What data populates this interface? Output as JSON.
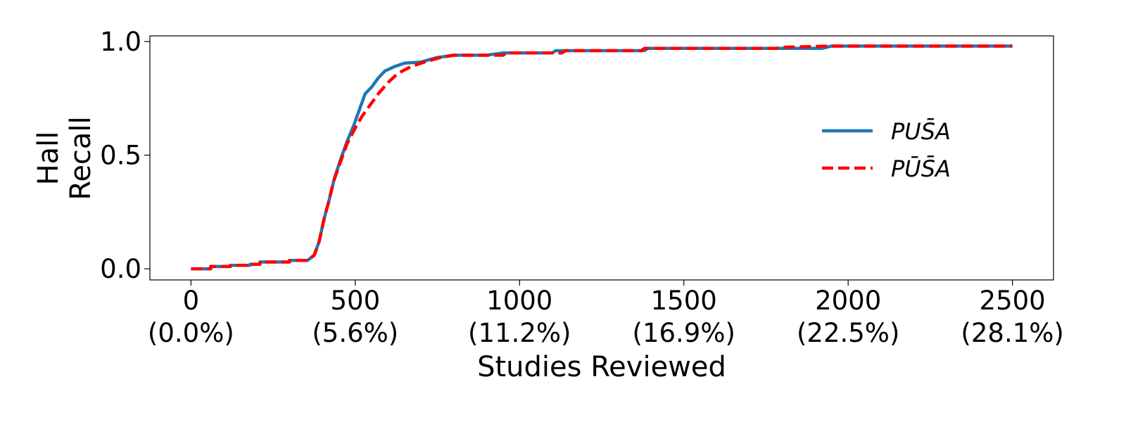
{
  "chart_data": {
    "type": "line",
    "xlabel": "Studies Reviewed",
    "ylabel_lines": [
      "Hall",
      "Recall"
    ],
    "xlim": [
      -125,
      2625
    ],
    "ylim": [
      -0.049,
      1.025
    ],
    "x_ticks": [
      {
        "value": 0,
        "label": "0",
        "sublabel": "(0.0%)"
      },
      {
        "value": 500,
        "label": "500",
        "sublabel": "(5.6%)"
      },
      {
        "value": 1000,
        "label": "1000",
        "sublabel": "(11.2%)"
      },
      {
        "value": 1500,
        "label": "1500",
        "sublabel": "(16.9%)"
      },
      {
        "value": 2000,
        "label": "2000",
        "sublabel": "(22.5%)"
      },
      {
        "value": 2500,
        "label": "2500",
        "sublabel": "(28.1%)"
      }
    ],
    "y_ticks": [
      {
        "value": 0.0,
        "label": "0.0"
      },
      {
        "value": 0.5,
        "label": "0.5"
      },
      {
        "value": 1.0,
        "label": "1.0"
      }
    ],
    "grid": false,
    "legend_position": "right",
    "series": [
      {
        "name": "PUS̄A",
        "color": "#1f77b4",
        "style": "solid",
        "points": [
          [
            0,
            0.0
          ],
          [
            60,
            0.0
          ],
          [
            60,
            0.01
          ],
          [
            120,
            0.01
          ],
          [
            120,
            0.015
          ],
          [
            180,
            0.015
          ],
          [
            180,
            0.02
          ],
          [
            210,
            0.02
          ],
          [
            210,
            0.03
          ],
          [
            300,
            0.03
          ],
          [
            300,
            0.037
          ],
          [
            355,
            0.037
          ],
          [
            375,
            0.06
          ],
          [
            390,
            0.12
          ],
          [
            405,
            0.22
          ],
          [
            420,
            0.3
          ],
          [
            435,
            0.39
          ],
          [
            455,
            0.48
          ],
          [
            475,
            0.56
          ],
          [
            495,
            0.63
          ],
          [
            515,
            0.71
          ],
          [
            530,
            0.77
          ],
          [
            550,
            0.8
          ],
          [
            570,
            0.84
          ],
          [
            590,
            0.87
          ],
          [
            620,
            0.89
          ],
          [
            650,
            0.905
          ],
          [
            700,
            0.91
          ],
          [
            750,
            0.93
          ],
          [
            800,
            0.94
          ],
          [
            900,
            0.94
          ],
          [
            950,
            0.95
          ],
          [
            1100,
            0.95
          ],
          [
            1110,
            0.96
          ],
          [
            1380,
            0.96
          ],
          [
            1390,
            0.97
          ],
          [
            1920,
            0.97
          ],
          [
            1950,
            0.98
          ],
          [
            2500,
            0.98
          ]
        ]
      },
      {
        "name": "PŪS̄A",
        "color": "#ff0000",
        "style": "dashed",
        "points": [
          [
            0,
            0.0
          ],
          [
            60,
            0.0
          ],
          [
            60,
            0.01
          ],
          [
            120,
            0.01
          ],
          [
            120,
            0.015
          ],
          [
            180,
            0.015
          ],
          [
            180,
            0.02
          ],
          [
            210,
            0.02
          ],
          [
            210,
            0.03
          ],
          [
            300,
            0.03
          ],
          [
            300,
            0.037
          ],
          [
            355,
            0.037
          ],
          [
            375,
            0.06
          ],
          [
            390,
            0.12
          ],
          [
            405,
            0.22
          ],
          [
            420,
            0.3
          ],
          [
            435,
            0.39
          ],
          [
            455,
            0.47
          ],
          [
            475,
            0.55
          ],
          [
            500,
            0.62
          ],
          [
            520,
            0.67
          ],
          [
            545,
            0.72
          ],
          [
            570,
            0.77
          ],
          [
            600,
            0.82
          ],
          [
            630,
            0.86
          ],
          [
            670,
            0.89
          ],
          [
            710,
            0.91
          ],
          [
            760,
            0.93
          ],
          [
            800,
            0.94
          ],
          [
            950,
            0.94
          ],
          [
            960,
            0.95
          ],
          [
            1130,
            0.95
          ],
          [
            1140,
            0.96
          ],
          [
            1370,
            0.96
          ],
          [
            1380,
            0.97
          ],
          [
            1780,
            0.97
          ],
          [
            1800,
            0.975
          ],
          [
            1950,
            0.98
          ],
          [
            2500,
            0.98
          ]
        ]
      }
    ]
  }
}
